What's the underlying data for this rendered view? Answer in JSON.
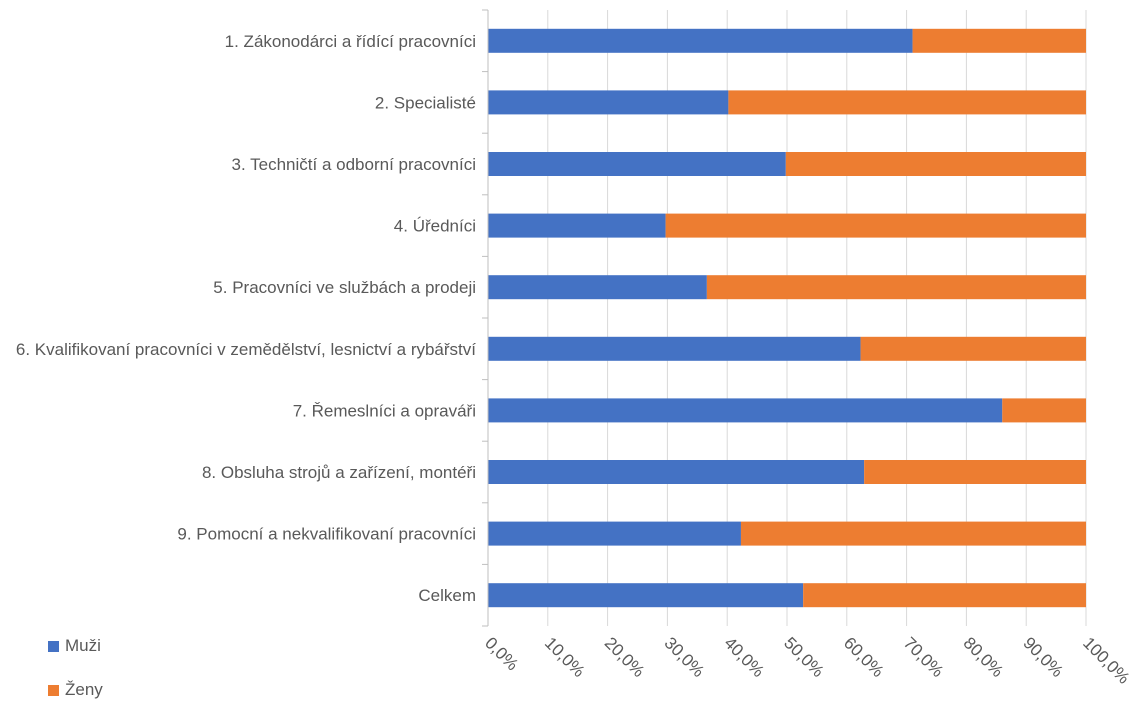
{
  "chart_data": {
    "type": "bar",
    "orientation": "horizontal",
    "stacked": "100%",
    "categories": [
      "1. Zákonodárci a řídící pracovníci",
      "2. Specialisté",
      "3. Techničtí a odborní pracovníci",
      "4. Úředníci",
      "5. Pracovníci ve službách a prodeji",
      "6. Kvalifikovaní pracovníci v zemědělství, lesnictví a rybářství",
      "7. Řemeslníci a opraváři",
      "8. Obsluha strojů a zařízení, montéři",
      "9. Pomocní a nekvalifikovaní pracovníci",
      "Celkem"
    ],
    "series": [
      {
        "name": "Muži",
        "color": "#4472C4",
        "values": [
          71.0,
          40.2,
          49.8,
          29.7,
          36.6,
          62.3,
          86.0,
          62.9,
          42.3,
          52.7
        ]
      },
      {
        "name": "Ženy",
        "color": "#ED7D31",
        "values": [
          29.0,
          59.8,
          50.2,
          70.3,
          63.4,
          37.7,
          14.0,
          37.1,
          57.7,
          47.3
        ]
      }
    ],
    "x_ticks": [
      "0,0%",
      "10,0%",
      "20,0%",
      "30,0%",
      "40,0%",
      "50,0%",
      "60,0%",
      "70,0%",
      "80,0%",
      "90,0%",
      "100,0%"
    ],
    "xlim": [
      0,
      100
    ],
    "grid": true,
    "legend_position": "bottom-left"
  },
  "legend": {
    "items": [
      {
        "label": "Muži",
        "color": "#4472C4"
      },
      {
        "label": "Ženy",
        "color": "#ED7D31"
      }
    ]
  }
}
